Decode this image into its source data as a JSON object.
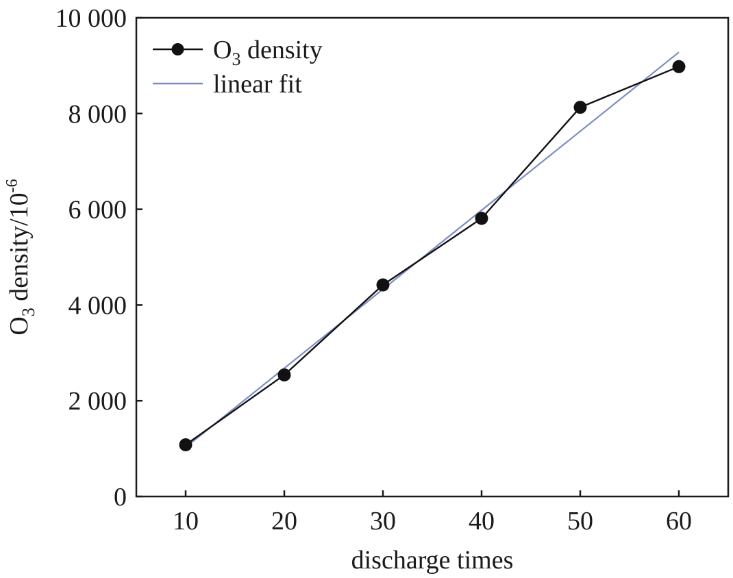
{
  "chart_data": {
    "type": "line",
    "xlabel": "discharge times",
    "ylabel": {
      "prefix": "O",
      "subscript": "3",
      "middle": " density/10",
      "superscript": "-6"
    },
    "xlim": [
      5,
      65
    ],
    "ylim": [
      0,
      10000
    ],
    "xticks": [
      10,
      20,
      30,
      40,
      50,
      60
    ],
    "xtick_labels": [
      "10",
      "20",
      "30",
      "40",
      "50",
      "60"
    ],
    "yticks": [
      0,
      2000,
      4000,
      6000,
      8000,
      10000
    ],
    "ytick_labels": [
      "0",
      "2 000",
      "4 000",
      "6 000",
      "8 000",
      "10 000"
    ],
    "grid": false,
    "legend_position": "top-left",
    "series": [
      {
        "name": "O3 density",
        "legend": {
          "prefix": "O",
          "subscript": "3",
          "suffix": " density"
        },
        "kind": "line-markers",
        "color": "#111111",
        "x": [
          10,
          20,
          30,
          40,
          50,
          60
        ],
        "y": [
          1080,
          2540,
          4420,
          5810,
          8130,
          8980
        ]
      },
      {
        "name": "linear fit",
        "legend": {
          "prefix": "linear fit",
          "subscript": "",
          "suffix": ""
        },
        "kind": "line",
        "color": "#7b8cc4",
        "x": [
          10,
          60
        ],
        "y": [
          1030,
          9280
        ]
      }
    ]
  }
}
